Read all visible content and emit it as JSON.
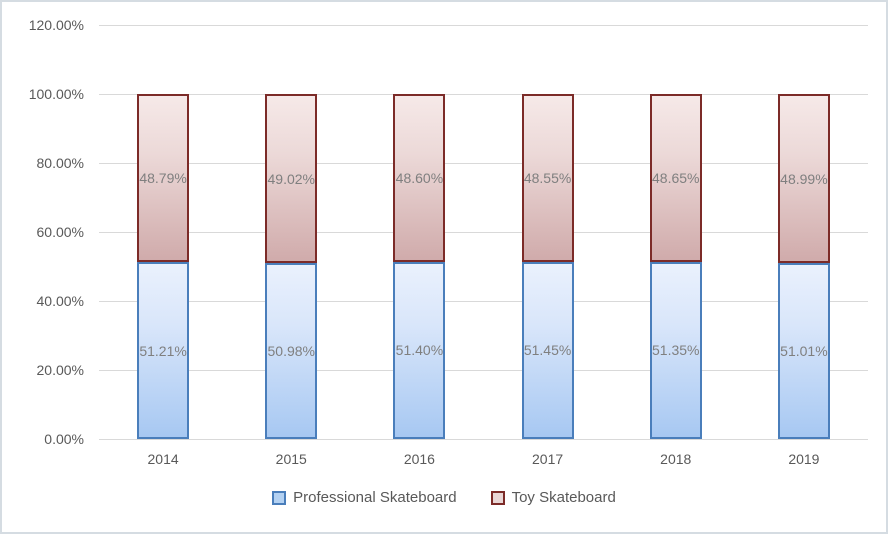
{
  "chart_data": {
    "type": "bar",
    "subtype": "stacked-100",
    "title": "",
    "xlabel": "",
    "ylabel": "",
    "categories": [
      "2014",
      "2015",
      "2016",
      "2017",
      "2018",
      "2019"
    ],
    "series": [
      {
        "name": "Professional Skateboard",
        "values": [
          51.21,
          50.98,
          51.4,
          51.45,
          51.35,
          51.01
        ],
        "labels": [
          "51.21%",
          "50.98%",
          "51.40%",
          "51.45%",
          "51.35%",
          "51.01%"
        ],
        "border_color": "#4a7ebb",
        "fill_top": "#eaf1fd",
        "fill_bottom": "#a7c8f2"
      },
      {
        "name": "Toy Skateboard",
        "values": [
          48.79,
          49.02,
          48.6,
          48.55,
          48.65,
          48.99
        ],
        "labels": [
          "48.79%",
          "49.02%",
          "48.60%",
          "48.55%",
          "48.65%",
          "48.99%"
        ],
        "border_color": "#7c2b28",
        "fill_top": "#f6e9e8",
        "fill_bottom": "#d0abab"
      }
    ],
    "y_axis": {
      "min": 0,
      "max": 120,
      "step": 20,
      "tick_labels": [
        "0.00%",
        "20.00%",
        "40.00%",
        "60.00%",
        "80.00%",
        "100.00%",
        "120.00%"
      ]
    },
    "legend": {
      "position": "bottom",
      "entries": [
        "Professional Skateboard",
        "Toy Skateboard"
      ]
    },
    "grid": true,
    "colors": {
      "gridline": "#d9d9d9",
      "axis_text": "#595959",
      "data_label_text": "#7f7f7f",
      "frame_border": "#d5dce2",
      "background": "#ffffff"
    }
  }
}
